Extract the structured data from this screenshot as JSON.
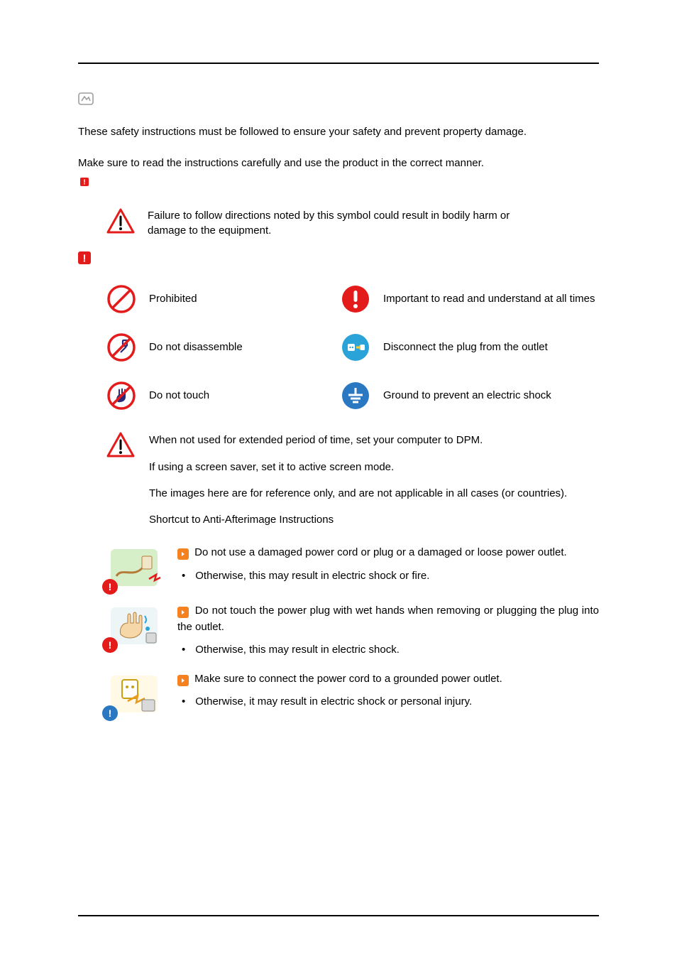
{
  "colors": {
    "red": "#e41b1b",
    "orange": "#f58220",
    "yellow": "#ffcc33",
    "blue": "#2aa3d9",
    "green_blue": "#2a8fb8",
    "ground_blue": "#2a78c2",
    "gray": "#9e9e9e",
    "black": "#000000",
    "illus_bg": "#d6efc9"
  },
  "intro": {
    "p1": "These safety instructions must be followed to ensure your safety and prevent property damage.",
    "p2": "Make sure to read the instructions carefully and use the product in the correct manner."
  },
  "warning_main": "Failure to follow directions noted by this symbol could result in bodily harm or damage to the equipment.",
  "legend": {
    "prohibited": "Prohibited",
    "important": "Important to read and understand at all times",
    "disassemble": "Do not disassemble",
    "disconnect": "Disconnect the plug from the outlet",
    "no_touch": "Do not touch",
    "ground": "Ground to prevent an electric shock"
  },
  "power_notes": {
    "p1": "When not used for extended period of time, set your computer to DPM.",
    "p2": "If using a screen saver, set it to active screen mode.",
    "p3": "The images here are for reference only, and are not applicable in all cases (or countries).",
    "p4": "Shortcut to Anti-Afterimage Instructions"
  },
  "instructions": [
    {
      "lead": "Do not use a damaged power cord or plug or a damaged or loose power outlet.",
      "bullet": "Otherwise, this may result in electric shock or fire.",
      "badge_color": "#e41b1b",
      "illus": "cord"
    },
    {
      "lead": "Do not touch the power plug with wet hands when removing or plugging the plug into the outlet.",
      "bullet": "Otherwise, this may result in electric shock.",
      "badge_color": "#e41b1b",
      "illus": "wet"
    },
    {
      "lead": "Make sure to connect the power cord to a grounded power outlet.",
      "bullet": "Otherwise, it may result in electric shock or personal injury.",
      "badge_color": "#2a78c2",
      "illus": "ground"
    }
  ]
}
